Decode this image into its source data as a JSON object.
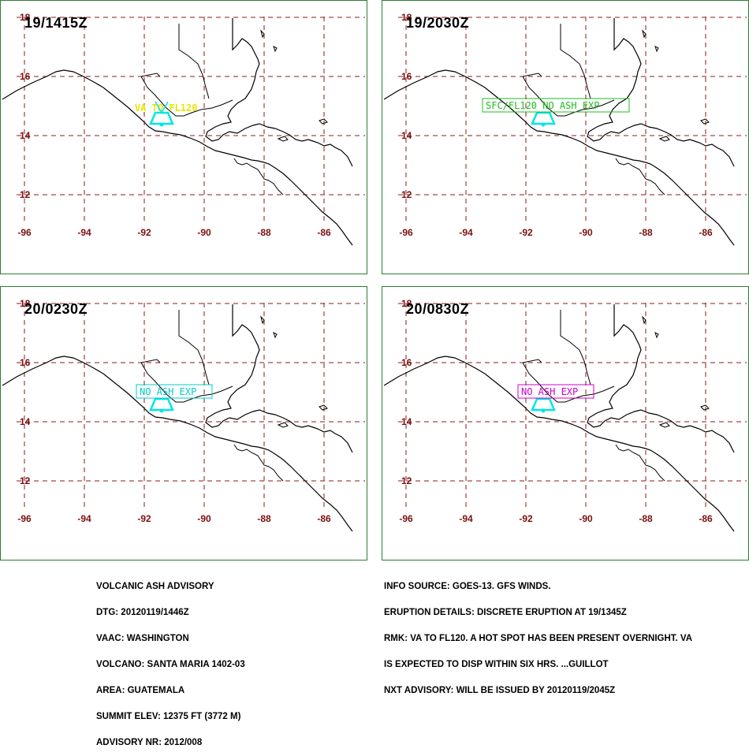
{
  "map": {
    "lat_labels": [
      "18",
      "16",
      "14",
      "12"
    ],
    "lon_labels": [
      "-96",
      "-94",
      "-92",
      "-90",
      "-88",
      "-86"
    ],
    "colors": {
      "frame": "#2e7d32",
      "grid": "#8b1a1a",
      "coast": "#000000",
      "volcano": "#00e5e5"
    }
  },
  "panels": [
    {
      "time": "19/1415Z",
      "ash_text": "VA TO FL120",
      "ash_color": "#e6e600",
      "boxed": false
    },
    {
      "time": "19/2030Z",
      "ash_text": "SFC/FL120 NO ASH EXP",
      "ash_color": "#22bb22",
      "boxed": true
    },
    {
      "time": "20/0230Z",
      "ash_text": "NO ASH EXP",
      "ash_color": "#00cccc",
      "boxed": true
    },
    {
      "time": "20/0830Z",
      "ash_text": "NO ASH EXP",
      "ash_color": "#cc00cc",
      "boxed": true
    }
  ],
  "advisory": {
    "lines": [
      "VOLCANIC ASH ADVISORY",
      "DTG: 20120119/1446Z",
      "VAAC: WASHINGTON",
      "VOLCANO: SANTA MARIA 1402-03",
      "AREA: GUATEMALA",
      "SUMMIT ELEV: 12375 FT (3772 M)",
      "ADVISORY NR: 2012/008"
    ]
  },
  "info": {
    "lines": [
      "INFO SOURCE: GOES-13. GFS WINDS.",
      "ERUPTION DETAILS: DISCRETE ERUPTION AT 19/1345Z",
      "RMK: VA TO FL120. A HOT SPOT HAS BEEN PRESENT OVERNIGHT. VA",
      "IS EXPECTED TO DISP WITHIN SIX HRS. ...GUILLOT",
      "NXT ADVISORY: WILL BE ISSUED BY 20120119/2045Z"
    ]
  }
}
